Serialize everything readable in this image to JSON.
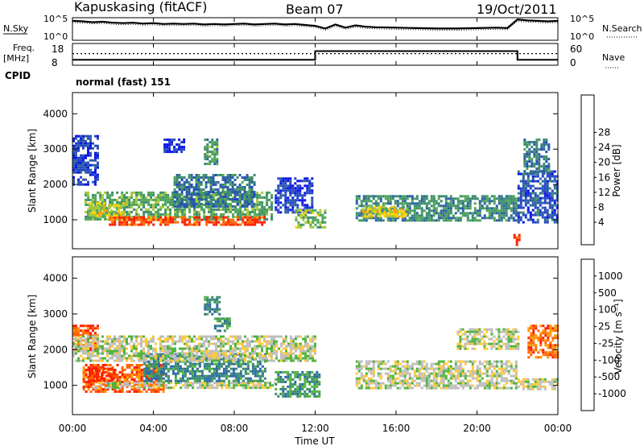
{
  "header": {
    "station": "Kapuskasing (fitACF)",
    "beam": "Beam 07",
    "date": "19/Oct/2011"
  },
  "panels": {
    "nsky_label": "N.Sky",
    "nsky_ticks": [
      "10^5",
      "10^0"
    ],
    "nsearch_label": "N.Search",
    "freq_label": "Freq.",
    "freq_unit": "[MHz]",
    "freq_ticks": [
      "18",
      "8"
    ],
    "nave_label": "Nave",
    "nave_ticks": [
      "60",
      "0"
    ],
    "cpid_label": "CPID",
    "cpid_value": "normal (fast) 151"
  },
  "chart_data": [
    {
      "type": "line",
      "name": "N.Sky / N.Search",
      "x_hours": [
        0,
        0.5,
        1,
        1.5,
        2,
        2.5,
        3,
        3.5,
        4,
        4.5,
        5,
        5.5,
        6,
        6.5,
        7,
        7.5,
        8,
        8.5,
        9,
        9.5,
        10,
        10.5,
        11,
        11.5,
        12,
        12.5,
        13,
        13.5,
        14,
        14.5,
        15,
        16,
        17,
        18,
        19,
        20,
        21,
        21.5,
        22,
        22.5,
        23,
        23.5,
        24
      ],
      "nsky_log10": [
        4.3,
        4.2,
        4.0,
        4.1,
        3.9,
        3.8,
        3.9,
        3.7,
        3.8,
        3.6,
        3.7,
        3.6,
        3.7,
        3.5,
        3.6,
        3.5,
        3.6,
        3.7,
        3.5,
        3.6,
        3.7,
        3.5,
        3.6,
        3.4,
        3.2,
        2.6,
        3.5,
        2.8,
        3.3,
        3.0,
        2.9,
        2.8,
        2.7,
        2.6,
        2.6,
        2.7,
        2.8,
        2.7,
        4.6,
        4.4,
        4.3,
        4.2,
        4.3
      ],
      "ylim": [
        0,
        5
      ]
    },
    {
      "type": "line",
      "name": "Freq. / Nave",
      "freq_mhz": [
        {
          "from": 0,
          "to": 12,
          "value": 10.5
        },
        {
          "from": 12,
          "to": 22,
          "value": 14.5
        },
        {
          "from": 22,
          "to": 24,
          "value": 10.5
        }
      ],
      "nave": [
        {
          "from": 0,
          "to": 24,
          "value": 32
        }
      ],
      "freq_ylim": [
        8,
        18
      ],
      "nave_ylim": [
        0,
        60
      ]
    },
    {
      "type": "heatmap",
      "quantity": "power",
      "ylabel": "Slant Range [km]",
      "yticks": [
        "1000",
        "2000",
        "3000",
        "4000"
      ],
      "ylim": [
        180,
        4600
      ],
      "colorbar_label": "Power [dB]",
      "colorbar_ticks": [
        "4",
        "8",
        "12",
        "16",
        "20",
        "24",
        "28"
      ],
      "colorbar_colors": [
        "#0a14e6",
        "#2544c8",
        "#2b5fa6",
        "#3c8c6e",
        "#4da55a",
        "#a8c83c",
        "#ffd200",
        "#ffa000",
        "#ff6400",
        "#ff1e00"
      ],
      "regions": [
        {
          "t0": 0.6,
          "t1": 9.9,
          "r0": 1000,
          "r1": 1800,
          "level": 0.45
        },
        {
          "t0": 1.8,
          "t1": 9.5,
          "r0": 850,
          "r1": 1100,
          "level": 0.9
        },
        {
          "t0": 0.8,
          "t1": 2.5,
          "r0": 1100,
          "r1": 1500,
          "level": 0.6
        },
        {
          "t0": 5.0,
          "t1": 9.0,
          "r0": 1400,
          "r1": 2300,
          "level": 0.3
        },
        {
          "t0": 0.0,
          "t1": 1.2,
          "r0": 2000,
          "r1": 3400,
          "level": 0.15
        },
        {
          "t0": 6.5,
          "t1": 7.2,
          "r0": 2600,
          "r1": 3300,
          "level": 0.4
        },
        {
          "t0": 4.5,
          "t1": 5.5,
          "r0": 2900,
          "r1": 3300,
          "level": 0.1
        },
        {
          "t0": 10.0,
          "t1": 11.8,
          "r0": 1200,
          "r1": 2200,
          "level": 0.15
        },
        {
          "t0": 11.0,
          "t1": 12.5,
          "r0": 800,
          "r1": 1300,
          "level": 0.5
        },
        {
          "t0": 14.0,
          "t1": 22.0,
          "r0": 950,
          "r1": 1700,
          "level": 0.35
        },
        {
          "t0": 14.3,
          "t1": 16.5,
          "r0": 1100,
          "r1": 1400,
          "level": 0.6
        },
        {
          "t0": 22.0,
          "t1": 24.0,
          "r0": 900,
          "r1": 2400,
          "level": 0.2
        },
        {
          "t0": 22.3,
          "t1": 23.6,
          "r0": 2300,
          "r1": 3300,
          "level": 0.3
        },
        {
          "t0": 21.8,
          "t1": 22.1,
          "r0": 300,
          "r1": 600,
          "level": 0.95
        }
      ]
    },
    {
      "type": "heatmap",
      "quantity": "velocity",
      "ylabel": "Slant Range [km]",
      "xlabel": "Time UT",
      "xticks": [
        "00:00",
        "04:00",
        "08:00",
        "12:00",
        "16:00",
        "20:00",
        "00:00"
      ],
      "yticks": [
        "1000",
        "2000",
        "3000",
        "4000"
      ],
      "ylim": [
        180,
        4600
      ],
      "colorbar_label": "Velocity [m s⁻¹]",
      "colorbar_ticks": [
        "1000",
        "500",
        "100",
        "25",
        "-25",
        "-100",
        "-500",
        "-1000"
      ],
      "colorbar_colors": [
        "#2544c8",
        "#2b6aa6",
        "#3c8c6e",
        "#50b43c",
        "#bebebe",
        "#ffc83c",
        "#ff9600",
        "#ff6400",
        "#ff1e00"
      ],
      "regions": [
        {
          "t0": 0.5,
          "t1": 4.5,
          "r0": 800,
          "r1": 1600,
          "level": 0.85
        },
        {
          "t0": 0.8,
          "t1": 2.0,
          "r0": 1100,
          "r1": 1500,
          "level": 0.97
        },
        {
          "t0": 1.0,
          "t1": 10.0,
          "r0": 900,
          "r1": 1100,
          "level": 0.5
        },
        {
          "t0": 3.5,
          "t1": 9.5,
          "r0": 1100,
          "r1": 1900,
          "level": 0.25
        },
        {
          "t0": 0.0,
          "t1": 1.3,
          "r0": 2000,
          "r1": 2700,
          "level": 0.85
        },
        {
          "t0": 0.0,
          "t1": 12.0,
          "r0": 1700,
          "r1": 2400,
          "level": 0.5
        },
        {
          "t0": 6.5,
          "t1": 7.3,
          "r0": 3000,
          "r1": 3500,
          "level": 0.25
        },
        {
          "t0": 7.0,
          "t1": 7.8,
          "r0": 2500,
          "r1": 2900,
          "level": 0.3
        },
        {
          "t0": 10.0,
          "t1": 12.2,
          "r0": 700,
          "r1": 1400,
          "level": 0.3
        },
        {
          "t0": 14.0,
          "t1": 22.0,
          "r0": 950,
          "r1": 1700,
          "level": 0.5
        },
        {
          "t0": 22.0,
          "t1": 24.0,
          "r0": 900,
          "r1": 1200,
          "level": 0.5
        },
        {
          "t0": 22.5,
          "t1": 24.0,
          "r0": 1800,
          "r1": 2700,
          "level": 0.82
        },
        {
          "t0": 19.0,
          "t1": 22.0,
          "r0": 2000,
          "r1": 2600,
          "level": 0.5
        }
      ]
    }
  ]
}
